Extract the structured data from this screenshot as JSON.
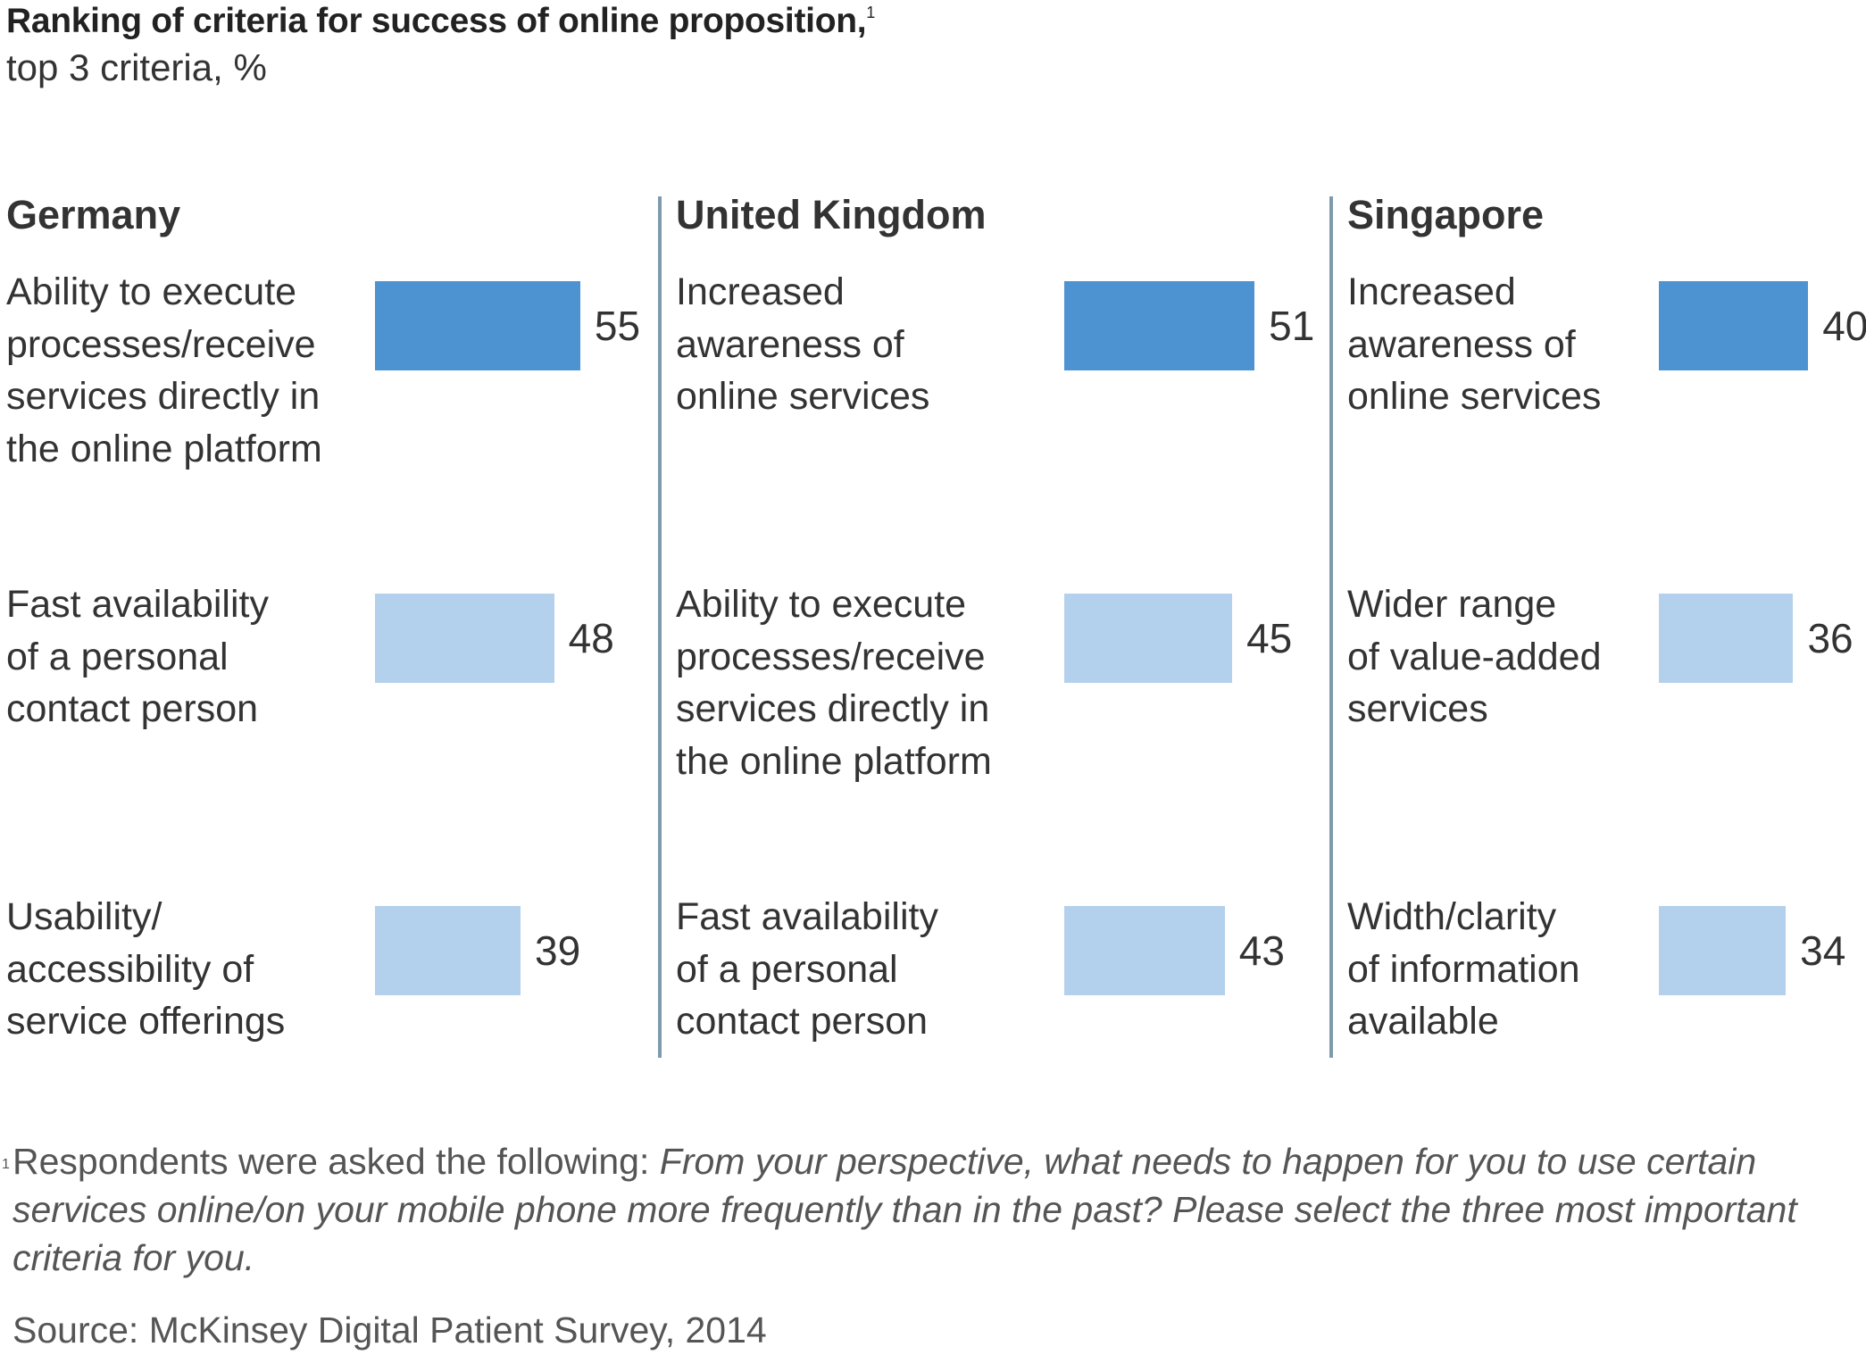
{
  "title": "Ranking of criteria for success of online proposition,",
  "title_footnote_mark": "1",
  "subtitle": "top 3 criteria, %",
  "colors": {
    "top_rank": "#4d93d1",
    "other_rank": "#b3d1ec",
    "divider": "#7f9bab"
  },
  "chart_data": {
    "type": "bar",
    "orientation": "horizontal",
    "title": "Ranking of criteria for success of online proposition",
    "subtitle": "top 3 criteria, %",
    "panels": [
      {
        "name": "Germany",
        "categories": [
          "Ability to execute processes/receive services directly in the online platform",
          "Fast availability of a personal contact person",
          "Usability/ accessibility of service offerings"
        ],
        "values": [
          55,
          48,
          39
        ]
      },
      {
        "name": "United Kingdom",
        "categories": [
          "Increased awareness of online services",
          "Ability to execute processes/receive services directly in the online platform",
          "Fast availability of a personal contact person"
        ],
        "values": [
          51,
          45,
          43
        ]
      },
      {
        "name": "Singapore",
        "categories": [
          "Increased awareness of online services",
          "Wider range of value-added services",
          "Width/clarity of information available"
        ],
        "values": [
          40,
          36,
          34
        ]
      }
    ],
    "xlim": [
      0,
      60
    ],
    "grid": false,
    "legend": "none"
  },
  "panels": [
    {
      "country": "Germany",
      "rows": [
        {
          "label": "Ability to execute\nprocesses/receive\nservices directly in\nthe online platform",
          "value": 55,
          "value_text": "55",
          "rank": 1
        },
        {
          "label": "Fast availability\nof a personal\ncontact person",
          "value": 48,
          "value_text": "48",
          "rank": 2
        },
        {
          "label": "Usability/\naccessibility of\nservice offerings",
          "value": 39,
          "value_text": "39",
          "rank": 3
        }
      ]
    },
    {
      "country": "United Kingdom",
      "rows": [
        {
          "label": "Increased\nawareness of\nonline services",
          "value": 51,
          "value_text": "51",
          "rank": 1
        },
        {
          "label": "Ability to execute\nprocesses/receive\nservices directly in\nthe online platform",
          "value": 45,
          "value_text": "45",
          "rank": 2
        },
        {
          "label": "Fast availability\nof a personal\ncontact person",
          "value": 43,
          "value_text": "43",
          "rank": 3
        }
      ]
    },
    {
      "country": "Singapore",
      "rows": [
        {
          "label": "Increased\nawareness of\nonline services",
          "value": 40,
          "value_text": "40",
          "rank": 1
        },
        {
          "label": "Wider range\nof value-added\nservices",
          "value": 36,
          "value_text": "36",
          "rank": 2
        },
        {
          "label": "Width/clarity\nof information\navailable",
          "value": 34,
          "value_text": "34",
          "rank": 3
        }
      ]
    }
  ],
  "footnote": {
    "mark": "1",
    "lead": "Respondents were asked the following: ",
    "question": "From your perspective, what needs to happen for you to use certain services online/on your mobile phone more frequently than in the past? Please select the three most important criteria for you."
  },
  "source": "Source: McKinsey Digital Patient Survey, 2014"
}
